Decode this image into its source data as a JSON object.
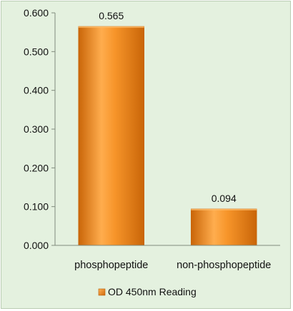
{
  "chart_data": {
    "type": "bar",
    "categories": [
      "phosphopeptide",
      "non-phosphopeptide"
    ],
    "series": [
      {
        "name": "OD 450nm Reading",
        "values": [
          0.565,
          0.094
        ]
      }
    ],
    "data_labels": [
      "0.565",
      "0.094"
    ],
    "y_ticks": [
      "0.000",
      "0.100",
      "0.200",
      "0.300",
      "0.400",
      "0.500",
      "0.600"
    ],
    "ylim": [
      0,
      0.6
    ],
    "grid": false,
    "legend_position": "bottom",
    "colors": {
      "bar": "#f08a1d",
      "bar_light": "#ffb257",
      "bar_dark": "#c25f08",
      "background": "#e4f1df"
    }
  }
}
